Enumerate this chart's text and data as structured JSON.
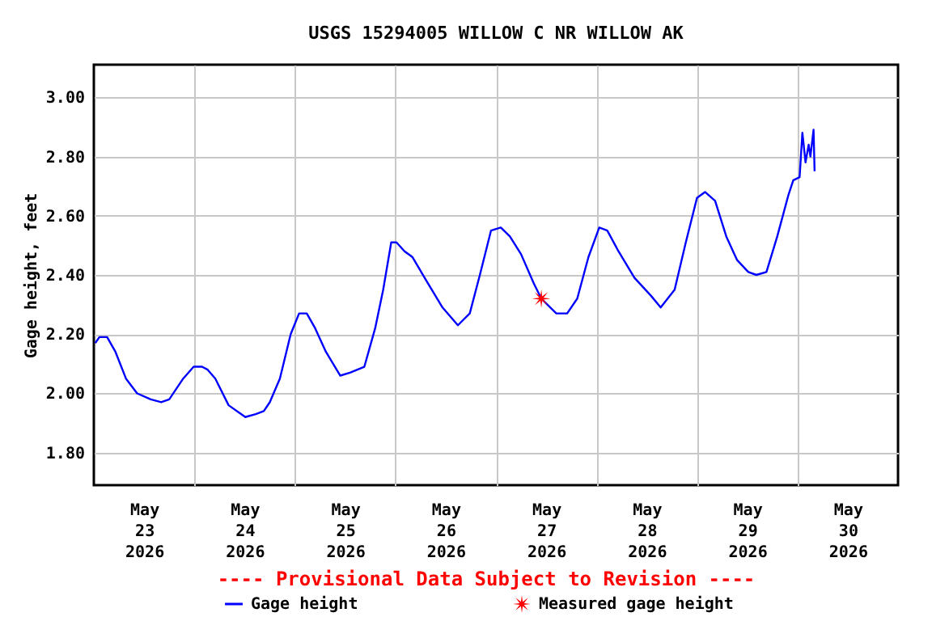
{
  "chart_data": {
    "type": "line",
    "title": "USGS 15294005 WILLOW C NR WILLOW AK",
    "ylabel": "Gage height, feet",
    "annotations": [
      "---- Provisional Data Subject to Revision ----"
    ],
    "xlim": [
      "2026-05-23T00:00",
      "2026-05-31T00:00"
    ],
    "xticks": [
      {
        "value": "2026-05-23T12:00",
        "label": "May\n23\n2026"
      },
      {
        "value": "2026-05-24T00:00",
        "label": null
      },
      {
        "value": "2026-05-24T12:00",
        "label": "May\n24\n2026"
      },
      {
        "value": "2026-05-25T00:00",
        "label": null
      },
      {
        "value": "2026-05-25T12:00",
        "label": "May\n25\n2026"
      },
      {
        "value": "2026-05-26T00:00",
        "label": null
      },
      {
        "value": "2026-05-26T12:00",
        "label": "May\n26\n2026"
      },
      {
        "value": "2026-05-27T00:00",
        "label": null
      },
      {
        "value": "2026-05-27T12:00",
        "label": "May\n27\n2026"
      },
      {
        "value": "2026-05-28T00:00",
        "label": null
      },
      {
        "value": "2026-05-28T12:00",
        "label": "May\n28\n2026"
      },
      {
        "value": "2026-05-29T00:00",
        "label": null
      },
      {
        "value": "2026-05-29T12:00",
        "label": "May\n29\n2026"
      },
      {
        "value": "2026-05-30T00:00",
        "label": null
      },
      {
        "value": "2026-05-30T12:00",
        "label": "May\n30\n2026"
      }
    ],
    "ylim": [
      1.69,
      3.11
    ],
    "yticks": [
      {
        "value": 1.8,
        "label": "1.80"
      },
      {
        "value": 2.0,
        "label": "2.00"
      },
      {
        "value": 2.2,
        "label": "2.20"
      },
      {
        "value": 2.4,
        "label": "2.40"
      },
      {
        "value": 2.6,
        "label": "2.60"
      },
      {
        "value": 2.8,
        "label": "2.80"
      },
      {
        "value": 3.0,
        "label": "3.00"
      }
    ],
    "grid": true,
    "legend": "bottom",
    "series": [
      {
        "name": "Gage height",
        "color": "#0000ff",
        "x": [
          "2026-05-23T00:20",
          "2026-05-23T01:20",
          "2026-05-23T03:10",
          "2026-05-23T05:10",
          "2026-05-23T07:40",
          "2026-05-23T10:20",
          "2026-05-23T13:35",
          "2026-05-23T16:05",
          "2026-05-23T18:00",
          "2026-05-23T21:20",
          "2026-05-23T23:50",
          "2026-05-24T01:50",
          "2026-05-24T03:10",
          "2026-05-24T05:00",
          "2026-05-24T08:10",
          "2026-05-24T12:10",
          "2026-05-24T14:40",
          "2026-05-24T16:35",
          "2026-05-24T18:00",
          "2026-05-24T20:25",
          "2026-05-24T23:00",
          "2026-05-25T01:00",
          "2026-05-25T02:50",
          "2026-05-25T04:50",
          "2026-05-25T07:25",
          "2026-05-25T10:50",
          "2026-05-25T13:10",
          "2026-05-25T16:35",
          "2026-05-25T19:10",
          "2026-05-25T21:05",
          "2026-05-25T23:00",
          "2026-05-26T00:15",
          "2026-05-26T02:10",
          "2026-05-26T04:05",
          "2026-05-26T07:25",
          "2026-05-26T11:15",
          "2026-05-26T14:55",
          "2026-05-26T17:45",
          "2026-05-26T20:10",
          "2026-05-26T22:50",
          "2026-05-27T01:10",
          "2026-05-27T03:20",
          "2026-05-27T06:00",
          "2026-05-27T09:05",
          "2026-05-27T10:50",
          "2026-05-27T14:25",
          "2026-05-27T17:00",
          "2026-05-27T19:25",
          "2026-05-27T22:05",
          "2026-05-28T00:40",
          "2026-05-28T02:35",
          "2026-05-28T05:15",
          "2026-05-28T09:05",
          "2026-05-28T13:00",
          "2026-05-28T15:20",
          "2026-05-28T18:40",
          "2026-05-28T21:20",
          "2026-05-29T00:00",
          "2026-05-29T01:55",
          "2026-05-29T04:20",
          "2026-05-29T07:00",
          "2026-05-29T09:35",
          "2026-05-29T12:15",
          "2026-05-29T14:10",
          "2026-05-29T16:35",
          "2026-05-29T19:10",
          "2026-05-29T21:50",
          "2026-05-29T23:00",
          "2026-05-30T00:30",
          "2026-05-30T01:10",
          "2026-05-30T01:55",
          "2026-05-30T02:40",
          "2026-05-30T03:05",
          "2026-05-30T03:50",
          "2026-05-30T04:05"
        ],
        "values": [
          2.17,
          2.19,
          2.19,
          2.14,
          2.05,
          2.0,
          1.98,
          1.97,
          1.98,
          2.05,
          2.09,
          2.09,
          2.08,
          2.05,
          1.96,
          1.92,
          1.93,
          1.94,
          1.97,
          2.05,
          2.2,
          2.27,
          2.27,
          2.22,
          2.14,
          2.06,
          2.07,
          2.09,
          2.22,
          2.35,
          2.51,
          2.51,
          2.48,
          2.46,
          2.38,
          2.29,
          2.23,
          2.27,
          2.4,
          2.55,
          2.56,
          2.53,
          2.47,
          2.37,
          2.32,
          2.27,
          2.27,
          2.32,
          2.46,
          2.56,
          2.55,
          2.48,
          2.39,
          2.33,
          2.29,
          2.35,
          2.51,
          2.66,
          2.68,
          2.65,
          2.53,
          2.45,
          2.41,
          2.4,
          2.41,
          2.53,
          2.67,
          2.72,
          2.73,
          2.88,
          2.78,
          2.84,
          2.8,
          2.89,
          2.75
        ]
      },
      {
        "name": "Measured gage height",
        "type": "scatter",
        "marker": "star",
        "color": "#ff0000",
        "x": [
          "2026-05-27T10:50"
        ],
        "values": [
          2.32
        ]
      }
    ]
  }
}
